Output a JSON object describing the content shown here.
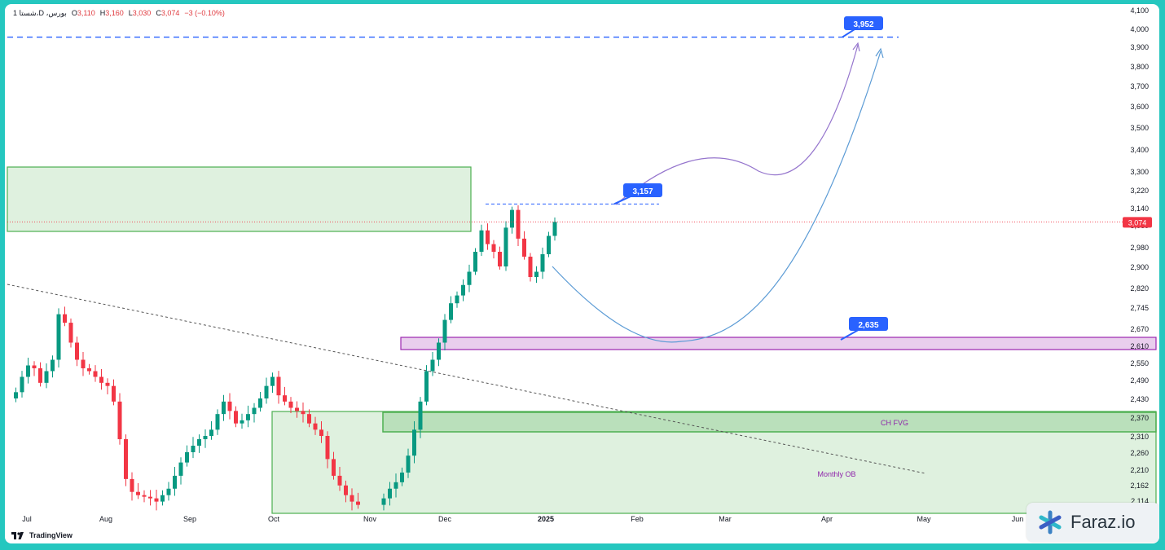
{
  "header": {
    "symbol": "1 شستا،D ،بورس",
    "open_label": "O",
    "open": "3,110",
    "high_label": "H",
    "high": "3,160",
    "low_label": "L",
    "low": "3,030",
    "close_label": "C",
    "close": "3,074",
    "change": "−3 (−0.10%)"
  },
  "watermark": {
    "brand": "Faraz.io",
    "icon": "asterisk-logo-icon"
  },
  "tradingview": {
    "label": "TradingView",
    "icon": "tradingview-logo-icon"
  },
  "colors": {
    "up": "#089981",
    "down": "#f23645",
    "zone_green": "#4caf50",
    "zone_purple": "#9c27b0",
    "level_blue": "#2962ff",
    "arrow_purple": "#9575cd",
    "arrow_blue": "#5b9bd5"
  },
  "chart_data": {
    "type": "candlestick",
    "y_ticks": [
      "4,100",
      "4,000",
      "3,900",
      "3,800",
      "3,700",
      "3,600",
      "3,500",
      "3,400",
      "3,300",
      "3,220",
      "3,140",
      "3,060",
      "2,980",
      "2,900",
      "2,820",
      "2,745",
      "2,670",
      "2,610",
      "2,550",
      "2,490",
      "2,430",
      "2,370",
      "2,310",
      "2,260",
      "2,210",
      "2,162",
      "2,114"
    ],
    "x_ticks": [
      "Jul",
      "Aug",
      "Sep",
      "Oct",
      "Nov",
      "Dec",
      "2025",
      "Feb",
      "Mar",
      "Apr",
      "May",
      "Jun"
    ],
    "price_badge": "3,074",
    "levels": [
      {
        "label": "3,952",
        "value": 3952
      },
      {
        "label": "3,157",
        "value": 3157
      },
      {
        "label": "2,635",
        "value": 2635
      }
    ],
    "zone_labels": {
      "fvg": "CH  FVG",
      "ob": "Monthly OB"
    },
    "closes": [
      2450,
      2500,
      2540,
      2530,
      2480,
      2520,
      2560,
      2720,
      2690,
      2620,
      2560,
      2530,
      2520,
      2500,
      2480,
      2470,
      2420,
      2300,
      2180,
      2140,
      2130,
      2125,
      2120,
      2110,
      2130,
      2150,
      2190,
      2230,
      2260,
      2280,
      2300,
      2310,
      2330,
      2380,
      2420,
      2390,
      2350,
      2360,
      2380,
      2400,
      2430,
      2470,
      2500,
      2440,
      2420,
      2400,
      2390,
      2380,
      2350,
      2330,
      2310,
      2240,
      2190,
      2160,
      2130,
      2110,
      2100,
      2120,
      2150,
      2170,
      2200,
      2250,
      2330,
      2420,
      2520,
      2560,
      2620,
      2700,
      2760,
      2790,
      2830,
      2880,
      2960,
      3040,
      2990,
      2960,
      2900,
      3050,
      3130,
      3010,
      2940,
      2860,
      2880,
      2950,
      3020,
      3074
    ]
  }
}
